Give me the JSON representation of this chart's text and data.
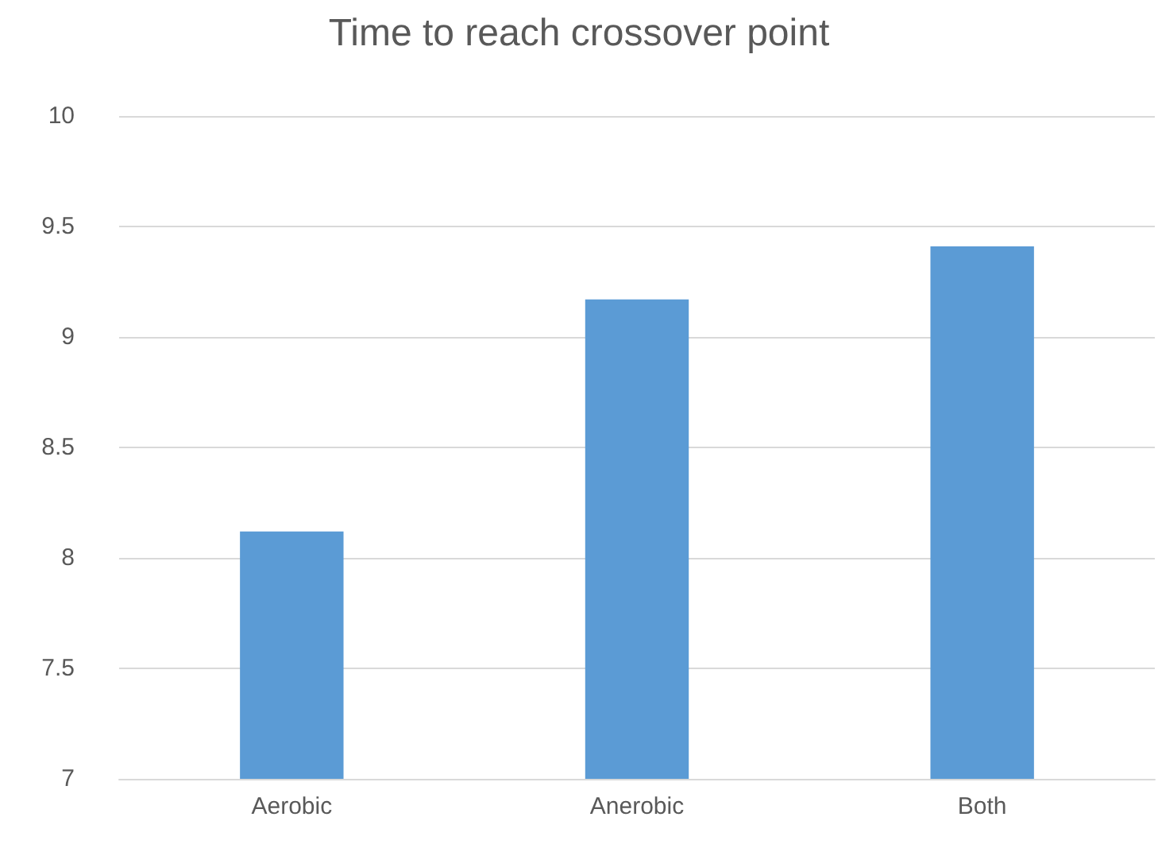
{
  "chart_data": {
    "type": "bar",
    "title": "Time to reach crossover point",
    "categories": [
      "Aerobic",
      "Anerobic",
      "Both"
    ],
    "values": [
      8.12,
      9.17,
      9.41
    ],
    "color": "#5b9bd5",
    "ylim": [
      7,
      10
    ],
    "yticks": [
      7,
      7.5,
      8,
      8.5,
      9,
      9.5,
      10
    ],
    "grid": "y"
  }
}
